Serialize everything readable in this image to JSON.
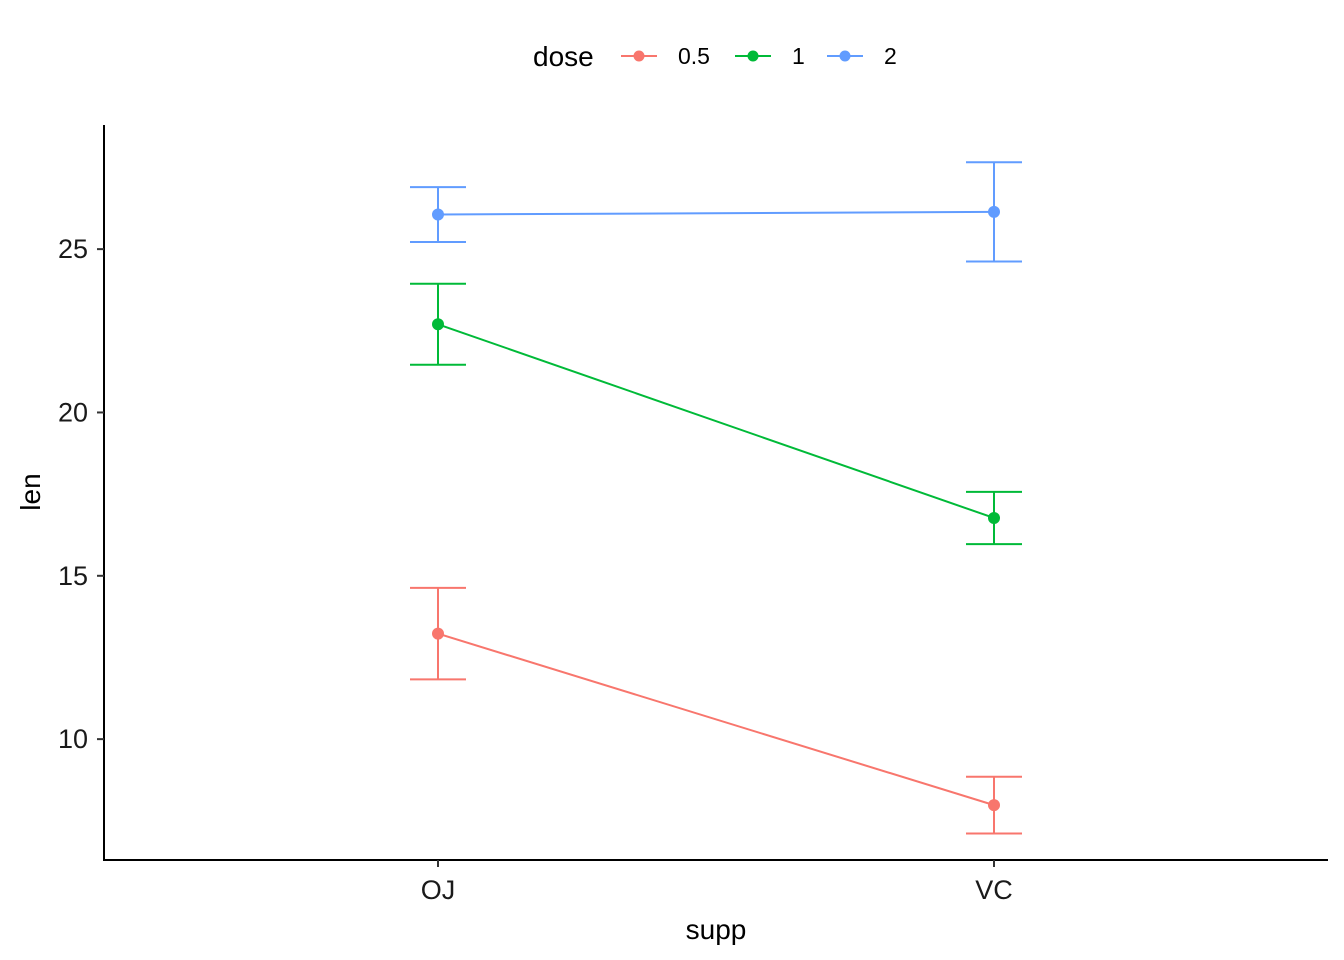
{
  "chart_data": {
    "type": "line",
    "xlabel": "supp",
    "ylabel": "len",
    "categories": [
      "OJ",
      "VC"
    ],
    "yticks": [
      10,
      15,
      20,
      25
    ],
    "ylim": [
      6.3,
      28.8
    ],
    "grid": false,
    "legend": {
      "title": "dose",
      "position": "top"
    },
    "series": [
      {
        "name": "0.5",
        "color": "#F8766D",
        "values": [
          13.23,
          7.98
        ],
        "error_low": [
          11.83,
          7.11
        ],
        "error_high": [
          14.63,
          8.85
        ]
      },
      {
        "name": "1",
        "color": "#00BA38",
        "values": [
          22.7,
          16.77
        ],
        "error_low": [
          21.46,
          15.97
        ],
        "error_high": [
          23.94,
          17.57
        ]
      },
      {
        "name": "2",
        "color": "#619CFF",
        "values": [
          26.06,
          26.14
        ],
        "error_low": [
          25.22,
          24.62
        ],
        "error_high": [
          26.9,
          27.66
        ]
      }
    ]
  }
}
